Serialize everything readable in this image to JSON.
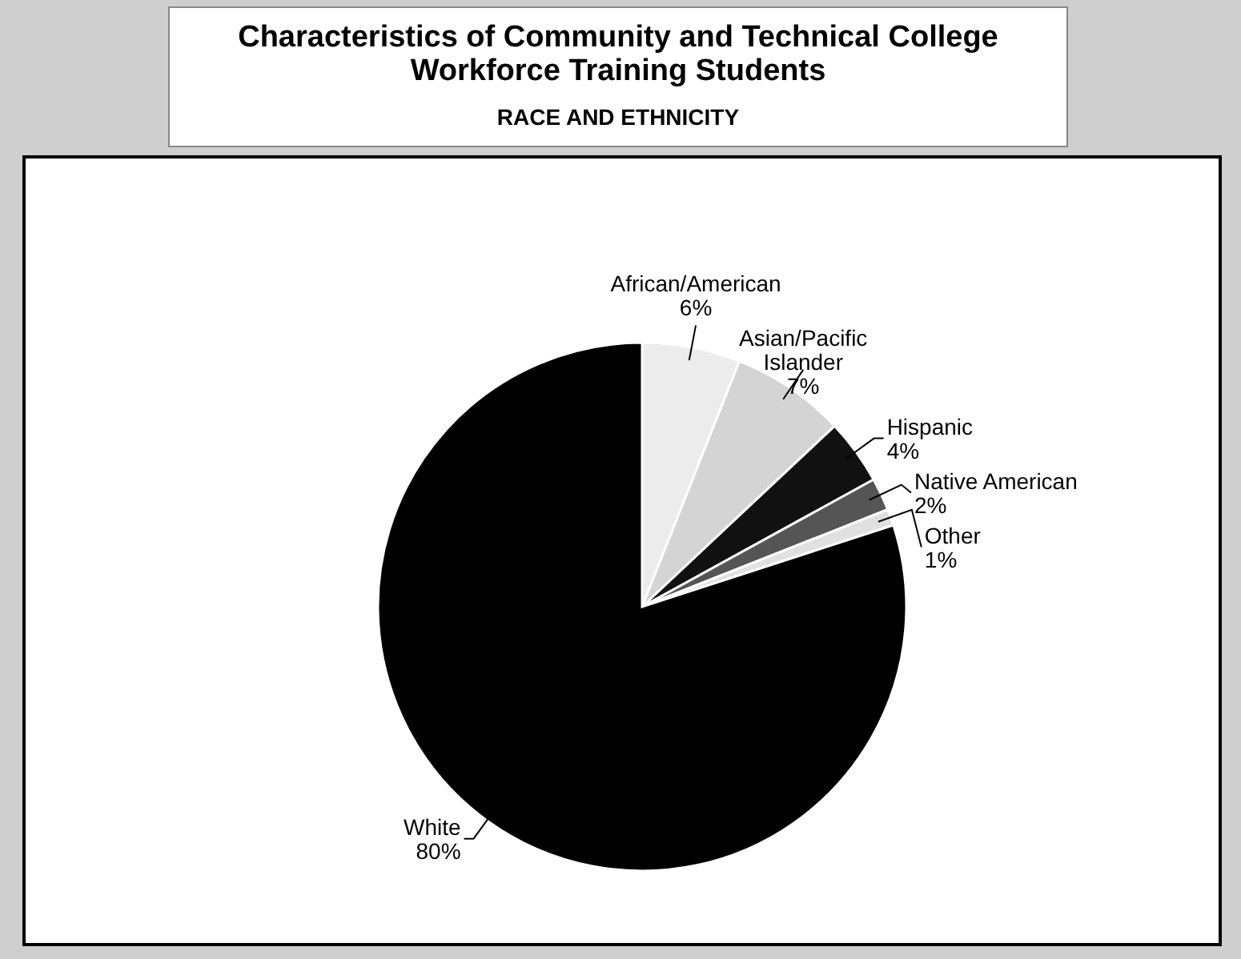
{
  "chart_data": {
    "type": "pie",
    "title": "Characteristics of Community and Technical College Workforce Training Students",
    "subtitle": "RACE AND ETHNICITY",
    "categories": [
      "African/American",
      "Asian/Pacific Islander",
      "Hispanic",
      "Native American",
      "Other",
      "White"
    ],
    "values": [
      6,
      7,
      4,
      2,
      1,
      80
    ],
    "value_labels": [
      "6%",
      "7%",
      "4%",
      "2%",
      "1%",
      "80%"
    ],
    "colors": [
      "#ececec",
      "#d4d4d4",
      "#111111",
      "#555555",
      "#e0e0e0",
      "#000000"
    ]
  }
}
